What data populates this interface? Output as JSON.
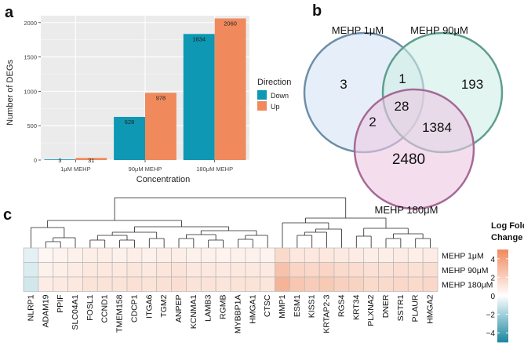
{
  "panel_labels": {
    "a": "a",
    "b": "b",
    "c": "c"
  },
  "colors": {
    "down": "#0e98b4",
    "up": "#f08a5d",
    "panel_bg": "#ebebeb",
    "venn_1": "#d6e4f5",
    "venn_1_stroke": "#6e8ea8",
    "venn_2": "#cfeee6",
    "venn_2_stroke": "#5f9e8f",
    "venn_3": "#ecc8e2",
    "venn_3_stroke": "#a56a96"
  },
  "chart_data": [
    {
      "type": "bar",
      "title": "",
      "xlabel": "Concentration",
      "ylabel": "Number of DEGs",
      "categories": [
        "1μM MEHP",
        "90μM MEHP",
        "180μM MEHP"
      ],
      "series": [
        {
          "name": "Down",
          "values": [
            3,
            628,
            1834
          ]
        },
        {
          "name": "Up",
          "values": [
            31,
            978,
            2060
          ]
        }
      ],
      "value_labels": {
        "Down": [
          "3",
          "628",
          "1834"
        ],
        "Up": [
          "31",
          "978",
          "2060"
        ]
      },
      "ylim": [
        0,
        2100
      ],
      "yticks": [
        0,
        500,
        1000,
        1500,
        2000
      ],
      "ytick_labels": [
        "0",
        "500",
        "1000",
        "1500",
        "2000"
      ],
      "legend": {
        "title": "Direction",
        "entries": [
          "Down",
          "Up"
        ],
        "placement": "right"
      },
      "grid": true
    },
    {
      "type": "venn",
      "sets": [
        "MEHP 1μM",
        "MEHP 90μM",
        "MEHP 180μM"
      ],
      "regions": {
        "only_1": "3",
        "only_90": "193",
        "only_180": "2480",
        "1_and_90": "1",
        "1_and_180": "2",
        "90_and_180": "1384",
        "all_three": "28"
      }
    },
    {
      "type": "heatmap",
      "columns": [
        "NLRP1",
        "ADAM19",
        "PPIF",
        "SLC04A1",
        "FOSL1",
        "CCND1",
        "TMEM158",
        "CDCP1",
        "ITGA6",
        "TGM2",
        "ANPEP",
        "KCNMA1",
        "LAMB3",
        "RGMB",
        "MYBBP1A",
        "HMGA1",
        "CTSC",
        "MMP1",
        "ESM1",
        "KISS1",
        "KRTAP2-3",
        "RGS4",
        "KRT34",
        "PLXNA2",
        "DNER",
        "SSTR1",
        "PLAUR",
        "HMGA2"
      ],
      "rows": [
        "MEHP 1μM",
        "MEHP 90μM",
        "MEHP 180μM"
      ],
      "values": [
        [
          -0.6,
          0.4,
          0.5,
          0.6,
          0.7,
          0.7,
          0.6,
          0.7,
          0.6,
          0.7,
          0.7,
          0.6,
          0.6,
          0.5,
          0.6,
          0.6,
          0.5,
          1.6,
          1.0,
          1.0,
          1.0,
          0.9,
          0.8,
          0.7,
          0.7,
          0.8,
          0.7,
          0.8
        ],
        [
          -0.8,
          0.6,
          0.7,
          0.8,
          1.0,
          1.0,
          1.0,
          1.1,
          1.0,
          1.1,
          1.2,
          1.0,
          1.0,
          0.9,
          1.0,
          1.0,
          0.9,
          2.6,
          1.8,
          1.7,
          1.8,
          1.6,
          1.5,
          1.3,
          1.3,
          1.4,
          1.3,
          1.4
        ],
        [
          -1.0,
          0.8,
          0.9,
          1.0,
          1.2,
          1.2,
          1.2,
          1.3,
          1.2,
          1.3,
          1.4,
          1.2,
          1.2,
          1.1,
          1.2,
          1.2,
          1.1,
          3.2,
          2.4,
          2.2,
          2.3,
          2.0,
          1.9,
          1.6,
          1.6,
          1.7,
          1.6,
          1.7
        ]
      ],
      "legend_title": "Log Fold Change",
      "legend_ticks": [
        4,
        2,
        0,
        -2,
        -4
      ],
      "legend_tick_labels": [
        "4",
        "2",
        "0",
        "−2",
        "−4"
      ],
      "vlim": [
        -5,
        5
      ]
    }
  ]
}
